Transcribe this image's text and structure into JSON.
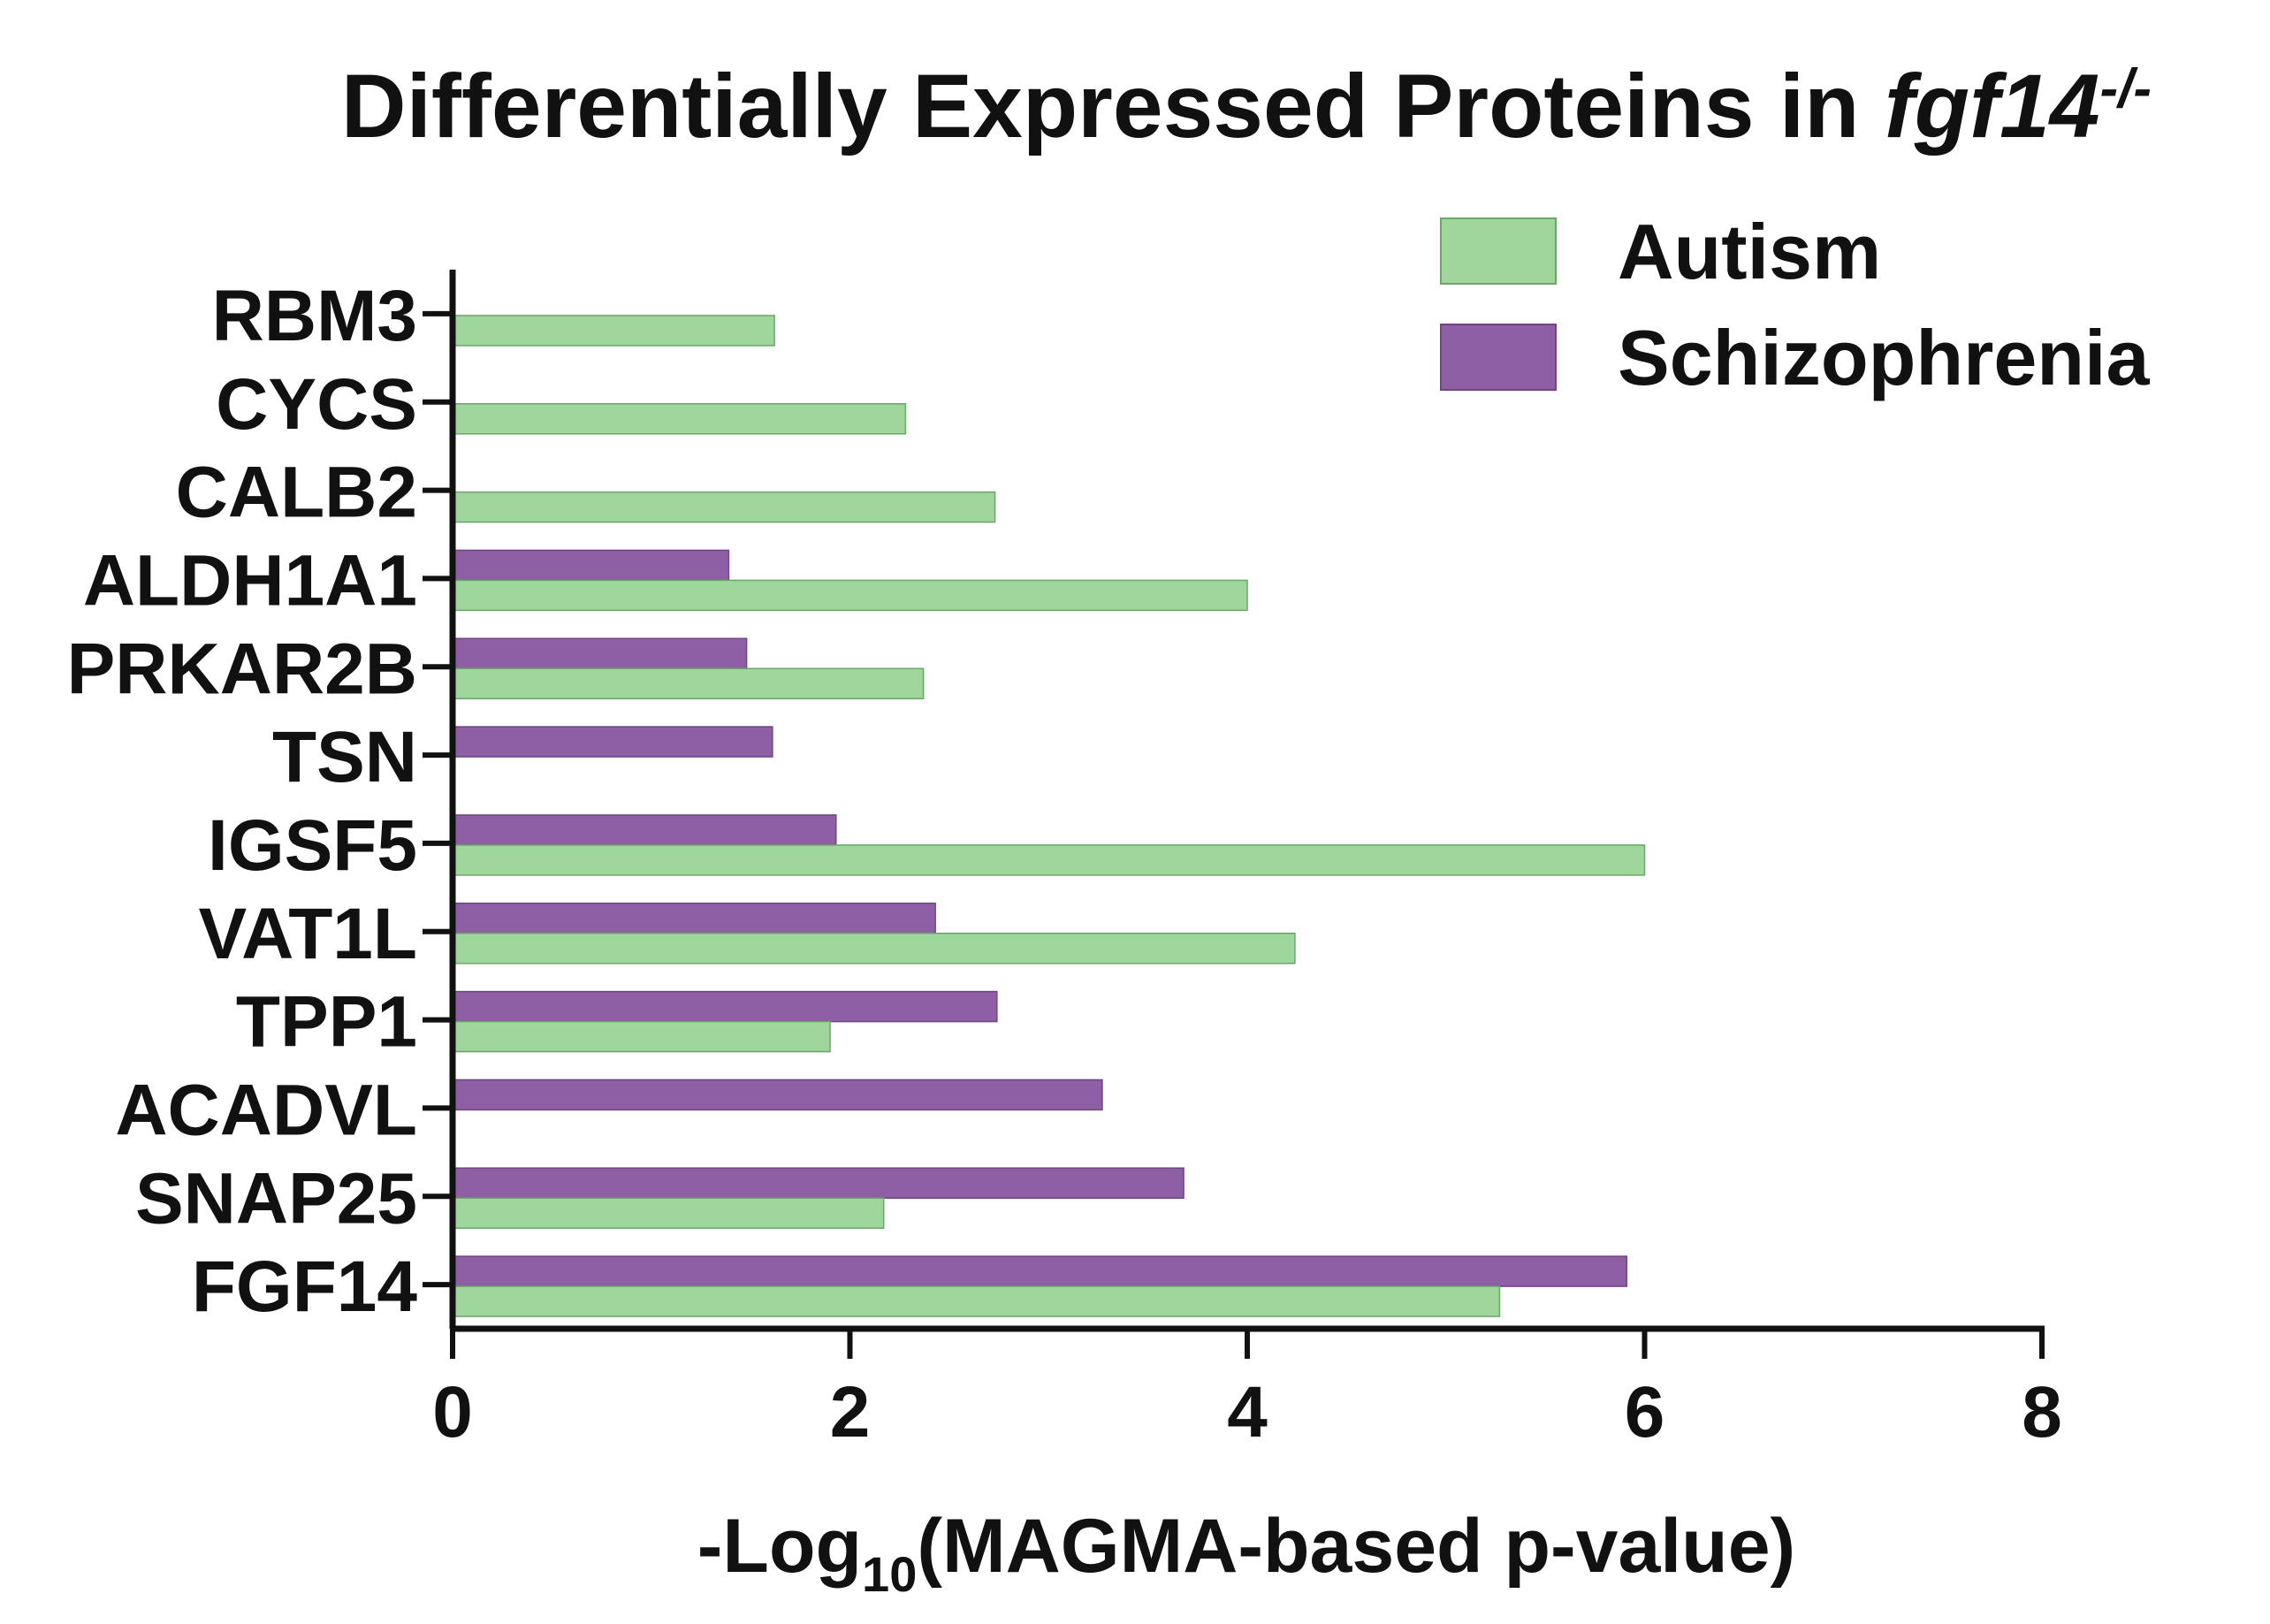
{
  "chart_data": {
    "type": "bar",
    "orientation": "horizontal",
    "title": "Differentially Expressed Proteins in ",
    "title_italic": "fgf14",
    "title_superscript": "-/-",
    "xlabel_prefix": "-Log",
    "xlabel_subscript": "10",
    "xlabel_suffix": "(MAGMA-based p-value)",
    "ylabel": "",
    "xlim": [
      0,
      8
    ],
    "xticks": [
      "0",
      "2",
      "4",
      "6",
      "8"
    ],
    "grid": false,
    "legend_position": "top-right",
    "categories": [
      "RBM3",
      "CYCS",
      "CALB2",
      "ALDH1A1",
      "PRKAR2B",
      "TSN",
      "IGSF5",
      "VAT1L",
      "TPP1",
      "ACADVL",
      "SNAP25",
      "FGF14"
    ],
    "series": [
      {
        "name": "Autism",
        "color": "#9ed69c",
        "values": [
          1.62,
          2.28,
          2.73,
          4.0,
          2.37,
          null,
          6.0,
          4.24,
          1.9,
          null,
          2.17,
          5.27
        ]
      },
      {
        "name": "Schizophrenia",
        "color": "#8f5fa6",
        "values": [
          null,
          null,
          null,
          1.39,
          1.48,
          1.61,
          1.93,
          2.43,
          2.74,
          3.27,
          3.68,
          5.91
        ]
      }
    ]
  }
}
